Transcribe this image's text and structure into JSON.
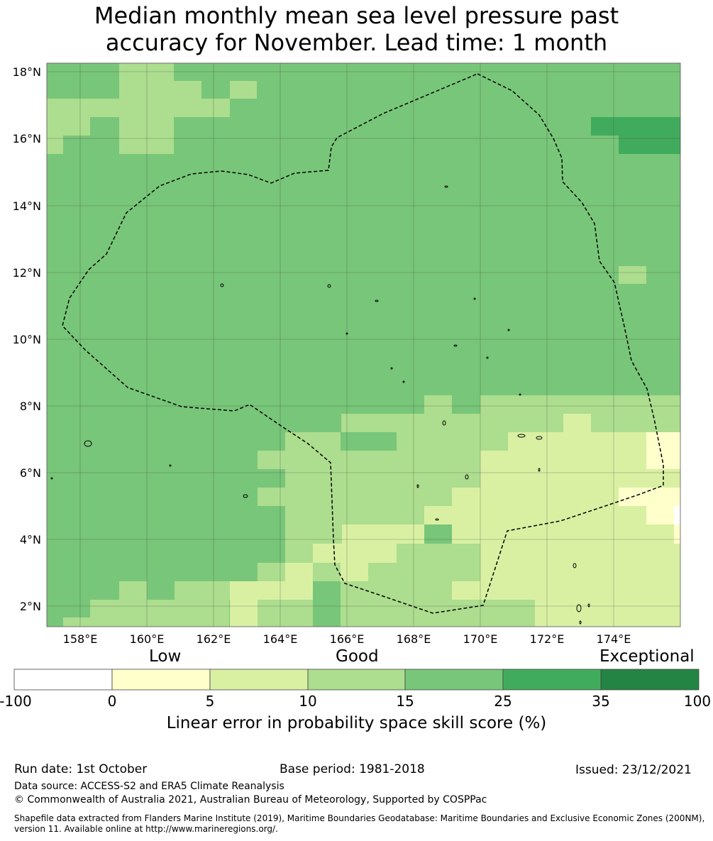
{
  "title": {
    "line1": "Median monthly mean sea level pressure past",
    "line2": "accuracy for November. Lead time: 1 month"
  },
  "map": {
    "lat_labels": [
      "18°N",
      "16°N",
      "14°N",
      "12°N",
      "10°N",
      "8°N",
      "6°N",
      "4°N",
      "2°N"
    ],
    "lon_labels": [
      "158°E",
      "160°E",
      "162°E",
      "164°E",
      "166°E",
      "168°E",
      "170°E",
      "172°E",
      "174°E"
    ],
    "boundary": "Exclusive economic zone (dashed line)"
  },
  "colorbar": {
    "categories": [
      "Low",
      "Good",
      "Exceptional"
    ],
    "ticks": [
      "-100",
      "0",
      "5",
      "10",
      "15",
      "25",
      "35",
      "100"
    ],
    "colors": [
      "#ffffff",
      "#ffffcc",
      "#d9f0a3",
      "#addd8e",
      "#78c679",
      "#41ab5d",
      "#238443"
    ],
    "label": "Linear error in probability space skill score (%)"
  },
  "footer": {
    "run_date": "Run date: 1st October",
    "base_period": "Base period: 1981-2018",
    "issued": "Issued: 23/12/2021",
    "data_source": "Data source: ACCESS-S2 and ERA5 Climate Reanalysis",
    "copyright": "© Commonwealth of Australia 2021, Australian Bureau of Meteorology, Supported by COSPPac",
    "shapefile_line1": "Shapefile data extracted from Flanders Marine Institute (2019), Maritime Boundaries Geodatabase: Maritime Boundaries and Exclusive Economic Zones (200NM),",
    "shapefile_line2": "version 11. Available online at http://www.marineregions.org/."
  }
}
